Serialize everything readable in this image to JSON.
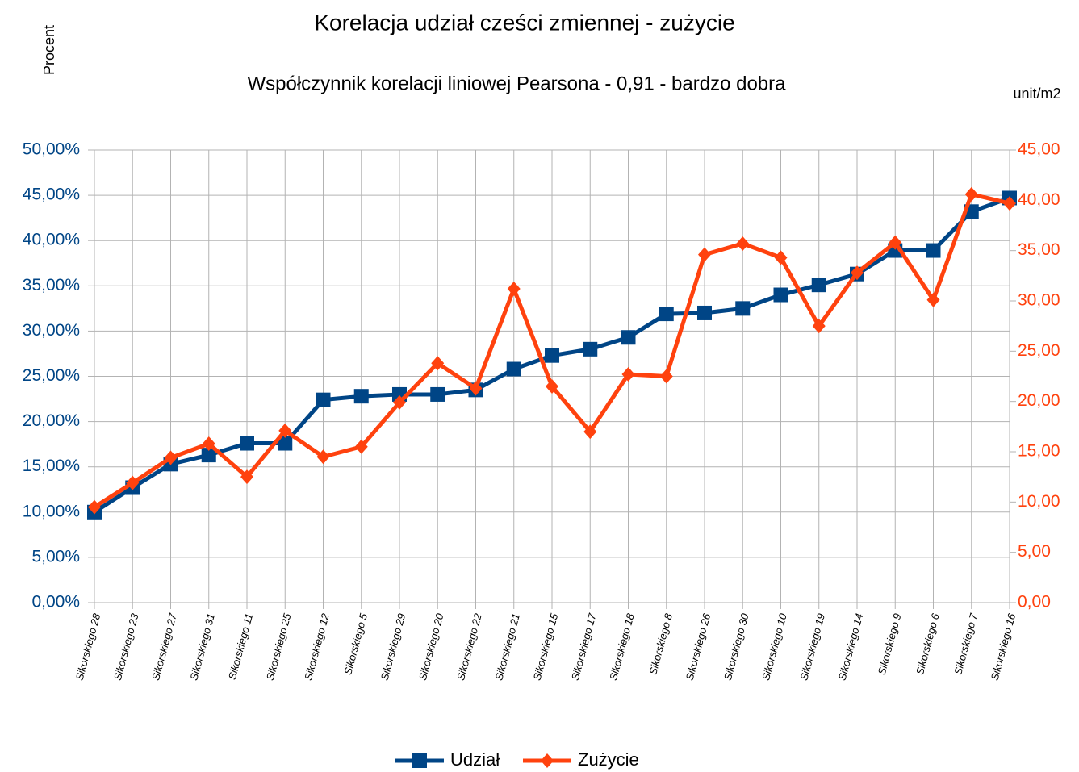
{
  "chart_data": {
    "type": "line",
    "title": "Korelacja udział cześci zmiennej - zużycie",
    "subtitle": "Współczynnik korelacji liniowej Pearsona - 0,91 - bardzo dobra",
    "y_label": "Procent",
    "y2_label": "unit/m2",
    "categories": [
      "Sikorskiego 28",
      "Sikorskiego 23",
      "Sikorskiego 27",
      "Sikorskiego 31",
      "Sikorskiego 11",
      "Sikorskiego 25",
      "Sikorskiego 12",
      "Sikorskiego 5",
      "Sikorskiego 29",
      "Sikorskiego 20",
      "Sikorskiego 22",
      "Sikorskiego 21",
      "Sikorskiego 15",
      "Sikorskiego 17",
      "Sikorskiego 18",
      "Sikorskiego 8",
      "Sikorskiego 26",
      "Sikorskiego 30",
      "Sikorskiego 10",
      "Sikorskiego 19",
      "Sikorskiego 14",
      "Sikorskiego 9",
      "Sikorskiego 6",
      "Sikorskiego 7",
      "Sikorskiego 16"
    ],
    "series": [
      {
        "name": "Udział",
        "color": "#004586",
        "marker": "square",
        "values": [
          10.0,
          12.7,
          15.3,
          16.3,
          17.6,
          17.6,
          22.4,
          22.8,
          23.0,
          23.0,
          23.5,
          25.8,
          27.3,
          28.0,
          29.3,
          31.9,
          32.0,
          32.5,
          34.0,
          35.1,
          36.3,
          38.9,
          38.9,
          43.2,
          44.7
        ]
      },
      {
        "name": "Zużycie",
        "color": "#ff420e",
        "marker": "diamond",
        "axis": "y2",
        "values": [
          9.5,
          11.9,
          14.4,
          15.8,
          12.5,
          17.1,
          14.5,
          15.5,
          19.9,
          23.8,
          21.3,
          31.2,
          21.5,
          17.0,
          22.7,
          22.5,
          34.6,
          35.7,
          34.3,
          27.5,
          32.8,
          35.8,
          30.1,
          40.6,
          39.7
        ]
      }
    ],
    "ylim": [
      0,
      50
    ],
    "yticks": [
      {
        "value": 0,
        "label": "0,00%"
      },
      {
        "value": 5,
        "label": "5,00%"
      },
      {
        "value": 10,
        "label": "10,00%"
      },
      {
        "value": 15,
        "label": "15,00%"
      },
      {
        "value": 20,
        "label": "20,00%"
      },
      {
        "value": 25,
        "label": "25,00%"
      },
      {
        "value": 30,
        "label": "30,00%"
      },
      {
        "value": 35,
        "label": "35,00%"
      },
      {
        "value": 40,
        "label": "40,00%"
      },
      {
        "value": 45,
        "label": "45,00%"
      },
      {
        "value": 50,
        "label": "50,00%"
      }
    ],
    "y2lim": [
      0,
      45
    ],
    "y2ticks": [
      {
        "value": 0,
        "label": "0,00"
      },
      {
        "value": 5,
        "label": "5,00"
      },
      {
        "value": 10,
        "label": "10,00"
      },
      {
        "value": 15,
        "label": "15,00"
      },
      {
        "value": 20,
        "label": "20,00"
      },
      {
        "value": 25,
        "label": "25,00"
      },
      {
        "value": 30,
        "label": "30,00"
      },
      {
        "value": 35,
        "label": "35,00"
      },
      {
        "value": 40,
        "label": "40,00"
      },
      {
        "value": 45,
        "label": "45,00"
      }
    ],
    "grid": true,
    "legend": "bottom"
  }
}
